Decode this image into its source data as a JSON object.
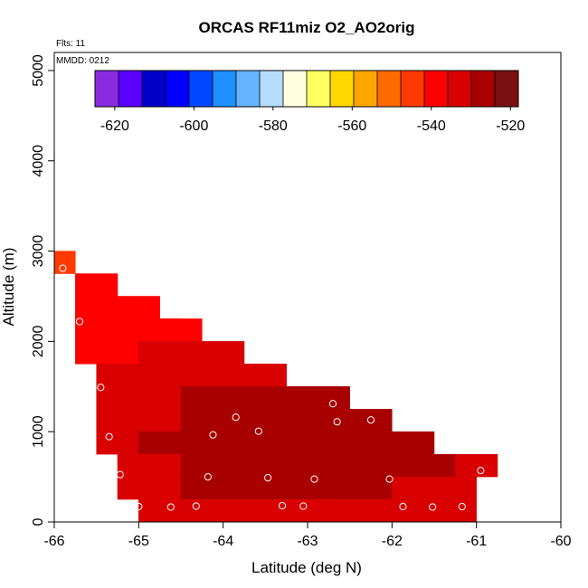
{
  "chart_data": {
    "type": "heatmap",
    "title": "ORCAS RF11miz O2_AO2orig",
    "notes": {
      "flights": "Flts: 11",
      "mmdd": "MMDD: 0212"
    },
    "xlabel": "Latitude (deg N)",
    "ylabel": "Altitude (m)",
    "xlim": [
      -66,
      -60
    ],
    "ylim": [
      0,
      5200
    ],
    "xticks": [
      -66,
      -65,
      -64,
      -63,
      -62,
      -61,
      -60
    ],
    "yticks": [
      0,
      1000,
      2000,
      3000,
      4000,
      5000
    ],
    "grid": false,
    "colorbar": {
      "ticks": [
        -620,
        -600,
        -580,
        -560,
        -540,
        -520
      ],
      "range": [
        -625,
        -518
      ],
      "bands": [
        "#8a2be2",
        "#5a00ff",
        "#0000c8",
        "#0000ff",
        "#0048ff",
        "#1e90ff",
        "#64b4ff",
        "#b4dcff",
        "#ffffe0",
        "#ffff60",
        "#ffd700",
        "#ffa500",
        "#ff6a00",
        "#ff3a00",
        "#ff0000",
        "#d80000",
        "#a80000",
        "#7a1010"
      ]
    },
    "cells": [
      {
        "lat_range": [
          -66.0,
          -65.75
        ],
        "alt_range": [
          2750,
          3000
        ],
        "value": -544
      },
      {
        "lat_range": [
          -65.75,
          -65.25
        ],
        "alt_range": [
          2500,
          2750
        ],
        "value": -540
      },
      {
        "lat_range": [
          -65.75,
          -65.25
        ],
        "alt_range": [
          2250,
          2500
        ],
        "value": -540
      },
      {
        "lat_range": [
          -65.25,
          -64.75
        ],
        "alt_range": [
          2250,
          2500
        ],
        "value": -540
      },
      {
        "lat_range": [
          -65.75,
          -65.5
        ],
        "alt_range": [
          2000,
          2250
        ],
        "value": -538
      },
      {
        "lat_range": [
          -65.5,
          -65.0
        ],
        "alt_range": [
          2000,
          2250
        ],
        "value": -539
      },
      {
        "lat_range": [
          -65.0,
          -64.5
        ],
        "alt_range": [
          2000,
          2250
        ],
        "value": -538
      },
      {
        "lat_range": [
          -64.75,
          -64.25
        ],
        "alt_range": [
          2000,
          2250
        ],
        "value": -536
      },
      {
        "lat_range": [
          -65.75,
          -65.0
        ],
        "alt_range": [
          1750,
          2000
        ],
        "value": -536
      },
      {
        "lat_range": [
          -65.0,
          -64.25
        ],
        "alt_range": [
          1750,
          2000
        ],
        "value": -535
      },
      {
        "lat_range": [
          -64.25,
          -63.75
        ],
        "alt_range": [
          1750,
          2000
        ],
        "value": -532
      },
      {
        "lat_range": [
          -65.5,
          -63.5
        ],
        "alt_range": [
          1500,
          1750
        ],
        "value": -531
      },
      {
        "lat_range": [
          -63.5,
          -63.25
        ],
        "alt_range": [
          1500,
          1750
        ],
        "value": -533
      },
      {
        "lat_range": [
          -65.5,
          -64.5
        ],
        "alt_range": [
          1250,
          1500
        ],
        "value": -530
      },
      {
        "lat_range": [
          -64.5,
          -62.5
        ],
        "alt_range": [
          1250,
          1500
        ],
        "value": -529
      },
      {
        "lat_range": [
          -65.5,
          -64.5
        ],
        "alt_range": [
          1000,
          1250
        ],
        "value": -530
      },
      {
        "lat_range": [
          -64.5,
          -62.75
        ],
        "alt_range": [
          1000,
          1250
        ],
        "value": -528
      },
      {
        "lat_range": [
          -62.75,
          -62.25
        ],
        "alt_range": [
          1000,
          1250
        ],
        "value": -526
      },
      {
        "lat_range": [
          -62.25,
          -62.0
        ],
        "alt_range": [
          1000,
          1250
        ],
        "value": -528
      },
      {
        "lat_range": [
          -65.5,
          -65.0
        ],
        "alt_range": [
          750,
          1000
        ],
        "value": -530
      },
      {
        "lat_range": [
          -65.0,
          -63.5
        ],
        "alt_range": [
          750,
          1000
        ],
        "value": -528
      },
      {
        "lat_range": [
          -63.5,
          -62.0
        ],
        "alt_range": [
          750,
          1000
        ],
        "value": -527
      },
      {
        "lat_range": [
          -62.0,
          -61.5
        ],
        "alt_range": [
          750,
          1000
        ],
        "value": -526
      },
      {
        "lat_range": [
          -65.25,
          -64.5
        ],
        "alt_range": [
          500,
          750
        ],
        "value": -530
      },
      {
        "lat_range": [
          -64.5,
          -63.25
        ],
        "alt_range": [
          500,
          750
        ],
        "value": -528
      },
      {
        "lat_range": [
          -63.25,
          -62.0
        ],
        "alt_range": [
          500,
          750
        ],
        "value": -527
      },
      {
        "lat_range": [
          -62.0,
          -61.25
        ],
        "alt_range": [
          500,
          750
        ],
        "value": -527
      },
      {
        "lat_range": [
          -61.25,
          -60.75
        ],
        "alt_range": [
          500,
          750
        ],
        "value": -530
      },
      {
        "lat_range": [
          -65.25,
          -64.5
        ],
        "alt_range": [
          250,
          500
        ],
        "value": -531
      },
      {
        "lat_range": [
          -64.5,
          -63.0
        ],
        "alt_range": [
          250,
          500
        ],
        "value": -529
      },
      {
        "lat_range": [
          -63.0,
          -62.0
        ],
        "alt_range": [
          250,
          500
        ],
        "value": -528
      },
      {
        "lat_range": [
          -62.0,
          -61.0
        ],
        "alt_range": [
          250,
          500
        ],
        "value": -530
      },
      {
        "lat_range": [
          -65.0,
          -64.75
        ],
        "alt_range": [
          0,
          250
        ],
        "value": -535
      },
      {
        "lat_range": [
          -64.75,
          -62.0
        ],
        "alt_range": [
          0,
          250
        ],
        "value": -531
      },
      {
        "lat_range": [
          -62.0,
          -61.0
        ],
        "alt_range": [
          0,
          250
        ],
        "value": -531
      }
    ],
    "points": [
      {
        "lat": -65.9,
        "alt": 2810
      },
      {
        "lat": -65.7,
        "alt": 2220
      },
      {
        "lat": -65.45,
        "alt": 1490
      },
      {
        "lat": -65.35,
        "alt": 945
      },
      {
        "lat": -65.22,
        "alt": 525
      },
      {
        "lat": -65.0,
        "alt": 170
      },
      {
        "lat": -64.62,
        "alt": 165
      },
      {
        "lat": -64.32,
        "alt": 175
      },
      {
        "lat": -64.18,
        "alt": 500
      },
      {
        "lat": -64.12,
        "alt": 965
      },
      {
        "lat": -63.85,
        "alt": 1160
      },
      {
        "lat": -63.58,
        "alt": 1005
      },
      {
        "lat": -63.47,
        "alt": 490
      },
      {
        "lat": -63.3,
        "alt": 180
      },
      {
        "lat": -63.05,
        "alt": 175
      },
      {
        "lat": -62.92,
        "alt": 475
      },
      {
        "lat": -62.7,
        "alt": 1310
      },
      {
        "lat": -62.65,
        "alt": 1110
      },
      {
        "lat": -62.25,
        "alt": 1130
      },
      {
        "lat": -62.03,
        "alt": 475
      },
      {
        "lat": -61.87,
        "alt": 170
      },
      {
        "lat": -61.52,
        "alt": 165
      },
      {
        "lat": -61.17,
        "alt": 170
      },
      {
        "lat": -60.95,
        "alt": 570
      }
    ]
  }
}
